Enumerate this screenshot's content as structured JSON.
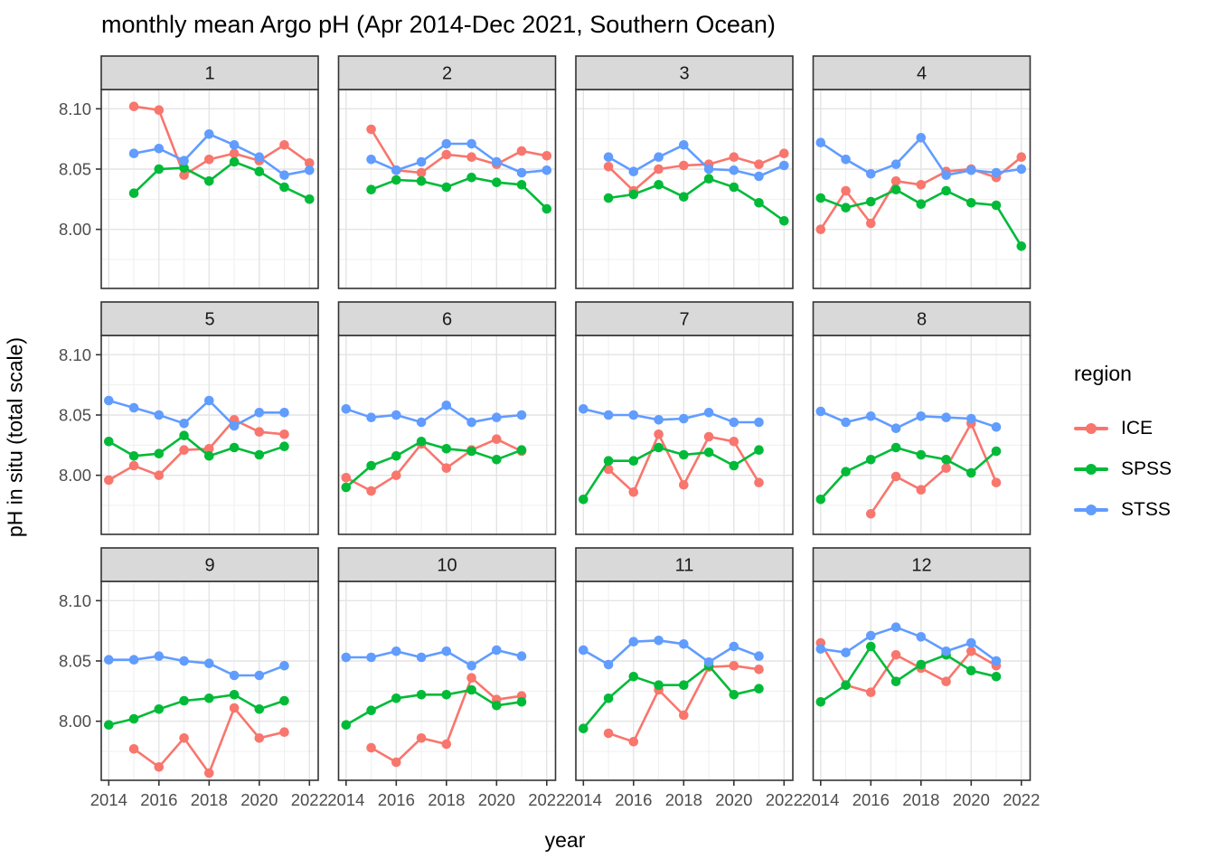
{
  "title": "monthly mean Argo pH (Apr 2014-Dec 2021, Southern Ocean)",
  "xlabel": "year",
  "ylabel": "pH in situ (total scale)",
  "legend": {
    "title": "region",
    "entries": [
      {
        "label": "ICE",
        "color": "#F8766D"
      },
      {
        "label": "SPSS",
        "color": "#00BA38"
      },
      {
        "label": "STSS",
        "color": "#619CFF"
      }
    ]
  },
  "chart_data": {
    "type": "line",
    "facet_variable": "month",
    "xlabel": "year",
    "ylabel": "pH in situ (total scale)",
    "xlim": [
      2013.7,
      2022.35
    ],
    "ylim": [
      7.951,
      8.116
    ],
    "x_ticks": [
      2014,
      2016,
      2018,
      2020,
      2022
    ],
    "x_tick_labels": [
      "2014",
      "2016",
      "2018",
      "2020",
      "2022"
    ],
    "x_minor_ticks": [
      2015,
      2017,
      2019,
      2021
    ],
    "y_ticks": [
      8.0,
      8.05,
      8.1
    ],
    "y_tick_labels": [
      "8.00",
      "8.05",
      "8.10"
    ],
    "y_minor_ticks": [
      7.975,
      8.025,
      8.075
    ],
    "grid": true,
    "legend_position": "right",
    "colors": {
      "ICE": "#F8766D",
      "SPSS": "#00BA38",
      "STSS": "#619CFF",
      "grid_major": "#e4e4e4",
      "grid_minor": "#efefef",
      "panel_border": "#333333",
      "strip_fill": "#d9d9d9",
      "tick_text": "#4d4d4d",
      "strip_text": "#1a1a1a"
    },
    "facets": [
      {
        "label": "1",
        "years": [
          2015,
          2016,
          2017,
          2018,
          2019,
          2020,
          2021,
          2022
        ],
        "series": [
          {
            "name": "ICE",
            "values": [
              8.102,
              8.099,
              8.045,
              8.058,
              8.063,
              8.057,
              8.07,
              8.055
            ]
          },
          {
            "name": "SPSS",
            "values": [
              8.03,
              8.05,
              8.051,
              8.04,
              8.056,
              8.048,
              8.035,
              8.025
            ]
          },
          {
            "name": "STSS",
            "values": [
              8.063,
              8.067,
              8.057,
              8.079,
              8.07,
              8.06,
              8.045,
              8.049
            ]
          }
        ]
      },
      {
        "label": "2",
        "years": [
          2015,
          2016,
          2017,
          2018,
          2019,
          2020,
          2021,
          2022
        ],
        "series": [
          {
            "name": "ICE",
            "values": [
              8.083,
              8.049,
              8.047,
              8.062,
              8.06,
              8.054,
              8.065,
              8.061
            ]
          },
          {
            "name": "SPSS",
            "values": [
              8.033,
              8.041,
              8.04,
              8.035,
              8.043,
              8.039,
              8.037,
              8.017
            ]
          },
          {
            "name": "STSS",
            "values": [
              8.058,
              8.049,
              8.056,
              8.071,
              8.071,
              8.056,
              8.047,
              8.049
            ]
          }
        ]
      },
      {
        "label": "3",
        "years": [
          2015,
          2016,
          2017,
          2018,
          2019,
          2020,
          2021,
          2022
        ],
        "series": [
          {
            "name": "ICE",
            "values": [
              8.052,
              8.032,
              8.05,
              8.053,
              8.054,
              8.06,
              8.054,
              8.063
            ]
          },
          {
            "name": "SPSS",
            "values": [
              8.026,
              8.029,
              8.037,
              8.027,
              8.042,
              8.035,
              8.022,
              8.007
            ]
          },
          {
            "name": "STSS",
            "values": [
              8.06,
              8.048,
              8.06,
              8.07,
              8.05,
              8.049,
              8.044,
              8.053
            ]
          }
        ]
      },
      {
        "label": "4",
        "years": [
          2014,
          2015,
          2016,
          2017,
          2018,
          2019,
          2020,
          2021,
          2022
        ],
        "series": [
          {
            "name": "ICE",
            "values": [
              8.0,
              8.032,
              8.005,
              8.04,
              8.037,
              8.048,
              8.05,
              8.043,
              8.06
            ]
          },
          {
            "name": "SPSS",
            "values": [
              8.026,
              8.018,
              8.023,
              8.033,
              8.021,
              8.032,
              8.022,
              8.02,
              7.986
            ]
          },
          {
            "name": "STSS",
            "values": [
              8.072,
              8.058,
              8.046,
              8.054,
              8.076,
              8.045,
              8.049,
              8.047,
              8.05
            ]
          }
        ]
      },
      {
        "label": "5",
        "years": [
          2014,
          2015,
          2016,
          2017,
          2018,
          2019,
          2020,
          2021
        ],
        "series": [
          {
            "name": "ICE",
            "values": [
              7.996,
              8.008,
              8.0,
              8.021,
              8.022,
              8.046,
              8.036,
              8.034
            ]
          },
          {
            "name": "SPSS",
            "values": [
              8.028,
              8.016,
              8.018,
              8.033,
              8.016,
              8.023,
              8.017,
              8.024
            ]
          },
          {
            "name": "STSS",
            "values": [
              8.062,
              8.056,
              8.05,
              8.043,
              8.062,
              8.041,
              8.052,
              8.052
            ]
          }
        ]
      },
      {
        "label": "6",
        "years": [
          2014,
          2015,
          2016,
          2017,
          2018,
          2019,
          2020,
          2021
        ],
        "series": [
          {
            "name": "ICE",
            "values": [
              7.998,
              7.987,
              8.0,
              8.026,
              8.006,
              8.021,
              8.03,
              8.02
            ]
          },
          {
            "name": "SPSS",
            "values": [
              7.99,
              8.008,
              8.016,
              8.028,
              8.022,
              8.02,
              8.013,
              8.021
            ]
          },
          {
            "name": "STSS",
            "values": [
              8.055,
              8.048,
              8.05,
              8.044,
              8.058,
              8.044,
              8.048,
              8.05
            ]
          }
        ]
      },
      {
        "label": "7",
        "years": [
          2014,
          2015,
          2016,
          2017,
          2018,
          2019,
          2020,
          2021
        ],
        "series": [
          {
            "name": "ICE",
            "values": [
              null,
              8.005,
              7.986,
              8.034,
              7.992,
              8.032,
              8.028,
              7.994
            ]
          },
          {
            "name": "SPSS",
            "values": [
              7.98,
              8.012,
              8.012,
              8.023,
              8.017,
              8.019,
              8.008,
              8.021
            ]
          },
          {
            "name": "STSS",
            "values": [
              8.055,
              8.05,
              8.05,
              8.046,
              8.047,
              8.052,
              8.044,
              8.044
            ]
          }
        ]
      },
      {
        "label": "8",
        "years": [
          2014,
          2015,
          2016,
          2017,
          2018,
          2019,
          2020,
          2021
        ],
        "series": [
          {
            "name": "ICE",
            "values": [
              null,
              null,
              7.968,
              7.999,
              7.988,
              8.006,
              8.043,
              7.994
            ]
          },
          {
            "name": "SPSS",
            "values": [
              7.98,
              8.003,
              8.013,
              8.023,
              8.017,
              8.013,
              8.002,
              8.02
            ]
          },
          {
            "name": "STSS",
            "values": [
              8.053,
              8.044,
              8.049,
              8.039,
              8.049,
              8.048,
              8.047,
              8.04
            ]
          }
        ]
      },
      {
        "label": "9",
        "years": [
          2014,
          2015,
          2016,
          2017,
          2018,
          2019,
          2020,
          2021
        ],
        "series": [
          {
            "name": "ICE",
            "values": [
              null,
              7.977,
              7.962,
              7.986,
              7.957,
              8.011,
              7.986,
              7.991
            ]
          },
          {
            "name": "SPSS",
            "values": [
              7.997,
              8.002,
              8.01,
              8.017,
              8.019,
              8.022,
              8.01,
              8.017
            ]
          },
          {
            "name": "STSS",
            "values": [
              8.051,
              8.051,
              8.054,
              8.05,
              8.048,
              8.038,
              8.038,
              8.046
            ]
          }
        ]
      },
      {
        "label": "10",
        "years": [
          2014,
          2015,
          2016,
          2017,
          2018,
          2019,
          2020,
          2021
        ],
        "series": [
          {
            "name": "ICE",
            "values": [
              null,
              7.978,
              7.966,
              7.986,
              7.981,
              8.036,
              8.018,
              8.021
            ]
          },
          {
            "name": "SPSS",
            "values": [
              7.997,
              8.009,
              8.019,
              8.022,
              8.022,
              8.026,
              8.013,
              8.016
            ]
          },
          {
            "name": "STSS",
            "values": [
              8.053,
              8.053,
              8.058,
              8.053,
              8.058,
              8.046,
              8.059,
              8.054
            ]
          }
        ]
      },
      {
        "label": "11",
        "years": [
          2014,
          2015,
          2016,
          2017,
          2018,
          2019,
          2020,
          2021
        ],
        "series": [
          {
            "name": "ICE",
            "values": [
              null,
              7.99,
              7.983,
              8.026,
              8.005,
              8.045,
              8.046,
              8.043
            ]
          },
          {
            "name": "SPSS",
            "values": [
              7.994,
              8.019,
              8.037,
              8.03,
              8.03,
              8.046,
              8.022,
              8.027
            ]
          },
          {
            "name": "STSS",
            "values": [
              8.059,
              8.047,
              8.066,
              8.067,
              8.064,
              8.049,
              8.062,
              8.054
            ]
          }
        ]
      },
      {
        "label": "12",
        "years": [
          2014,
          2015,
          2016,
          2017,
          2018,
          2019,
          2020,
          2021
        ],
        "series": [
          {
            "name": "ICE",
            "values": [
              8.065,
              8.03,
              8.024,
              8.055,
              8.044,
              8.033,
              8.058,
              8.046
            ]
          },
          {
            "name": "SPSS",
            "values": [
              8.016,
              8.03,
              8.062,
              8.033,
              8.047,
              8.055,
              8.042,
              8.037
            ]
          },
          {
            "name": "STSS",
            "values": [
              8.06,
              8.057,
              8.071,
              8.078,
              8.07,
              8.058,
              8.065,
              8.05
            ]
          }
        ]
      }
    ]
  }
}
